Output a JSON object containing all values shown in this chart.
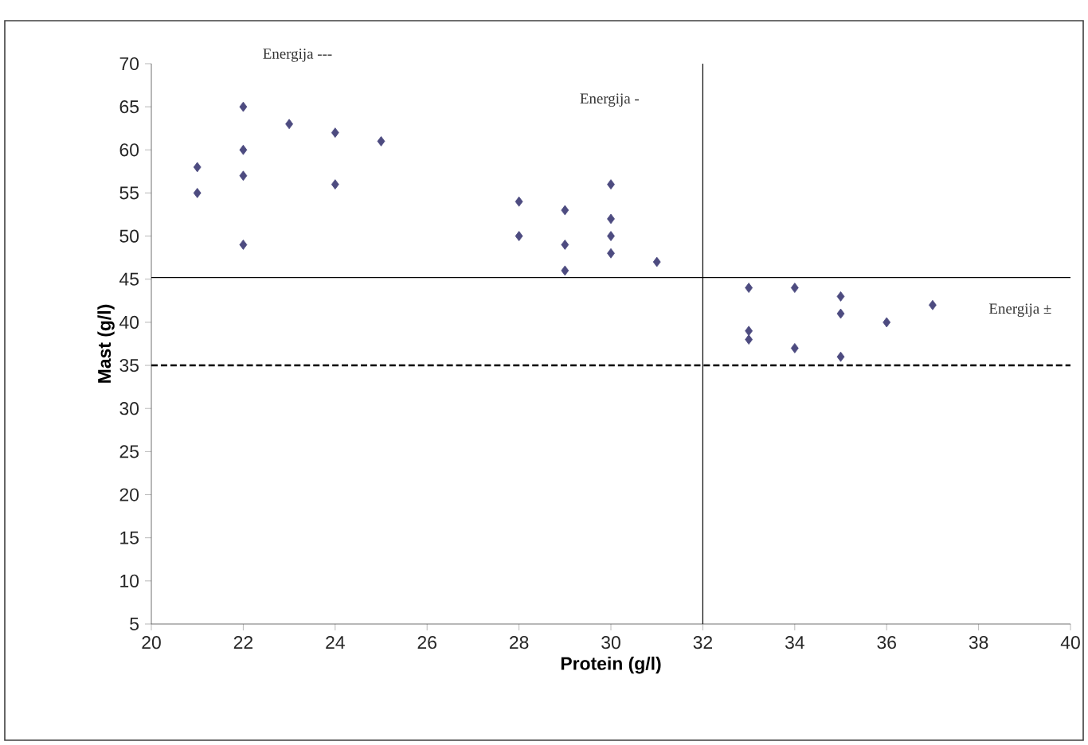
{
  "chart_data": {
    "type": "scatter",
    "xlabel": "Protein (g/l)",
    "ylabel": "Mast (g/l)",
    "xlim": [
      20,
      40
    ],
    "xticks": [
      20,
      22,
      24,
      26,
      28,
      30,
      32,
      34,
      36,
      38,
      40
    ],
    "ylim": [
      5,
      70
    ],
    "yticks": [
      5,
      10,
      15,
      20,
      25,
      30,
      35,
      40,
      45,
      50,
      55,
      60,
      65,
      70
    ],
    "grid": false,
    "marker": "diamond",
    "series": [
      {
        "color": "#4d4b80",
        "x": [
          21,
          21,
          22,
          22,
          22,
          22,
          23,
          24,
          24,
          25,
          28,
          28,
          29,
          29,
          29,
          30,
          30,
          30,
          30,
          31,
          33,
          33,
          33,
          34,
          34,
          35,
          35,
          35,
          36,
          37
        ],
        "values": [
          58,
          55,
          65,
          60,
          57,
          49,
          63,
          62,
          56,
          61,
          54,
          50,
          53,
          49,
          46,
          56,
          52,
          50,
          48,
          47,
          44,
          39,
          38,
          44,
          37,
          43,
          41,
          36,
          40,
          42
        ]
      }
    ],
    "ref_lines": [
      {
        "axis": "y",
        "value": 45.2,
        "color": "#000000",
        "line_style": "solid"
      },
      {
        "axis": "y",
        "value": 35,
        "color": "#000000",
        "line_style": "dashed"
      },
      {
        "axis": "x",
        "value": 32,
        "color": "#000000",
        "line_style": "solid"
      }
    ],
    "annotations": [
      "Energija ---",
      "Energija -",
      "Energija ±"
    ]
  }
}
